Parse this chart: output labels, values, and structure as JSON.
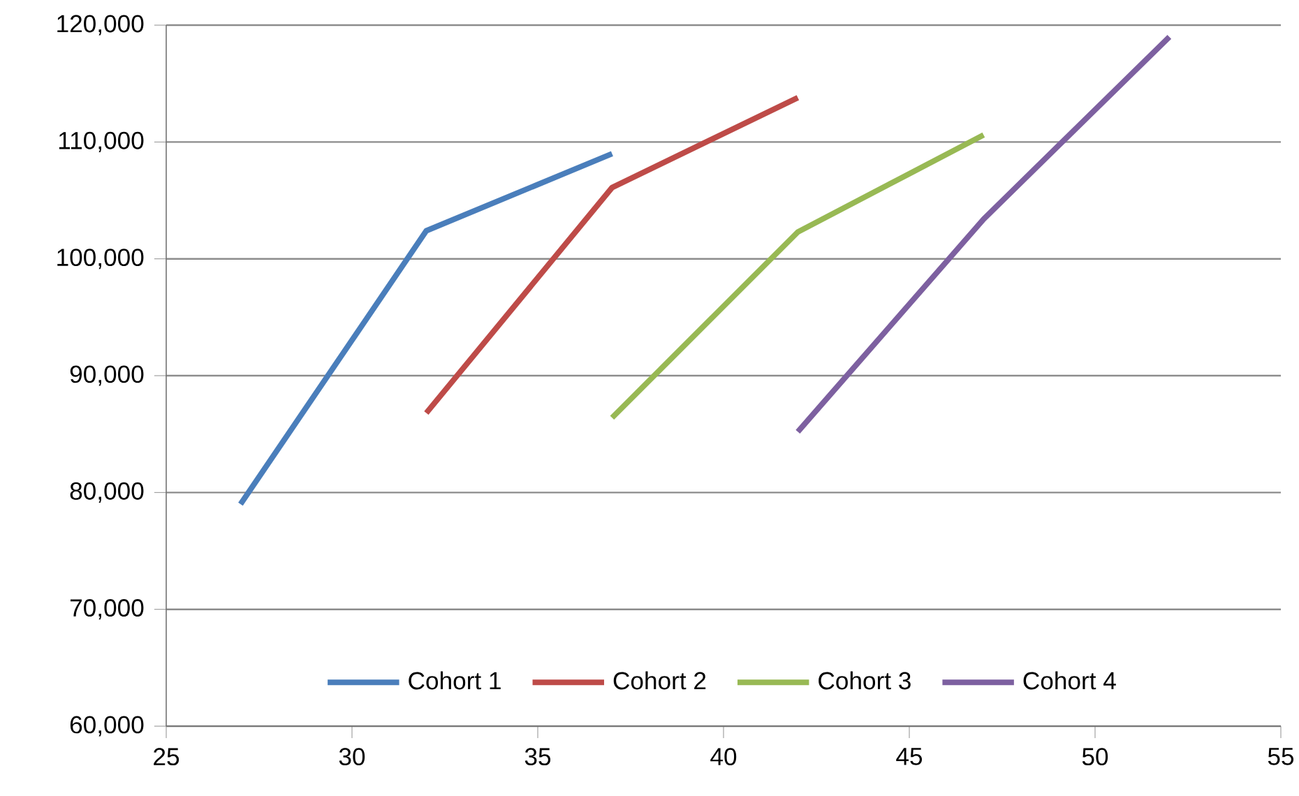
{
  "chart_data": {
    "type": "line",
    "xlim": [
      25,
      55
    ],
    "xticks": [
      25,
      30,
      35,
      40,
      45,
      50,
      55
    ],
    "ylim": [
      60000,
      120000
    ],
    "yticks": [
      {
        "value": 60000,
        "label": "60,000"
      },
      {
        "value": 70000,
        "label": "70,000"
      },
      {
        "value": 80000,
        "label": "80,000"
      },
      {
        "value": 90000,
        "label": "90,000"
      },
      {
        "value": 100000,
        "label": "100,000"
      },
      {
        "value": 110000,
        "label": "110,000"
      },
      {
        "value": 120000,
        "label": "120,000"
      }
    ],
    "grid": "y",
    "legend": "bottom",
    "marker": "none",
    "line_style": "solid",
    "series": [
      {
        "name": "Cohort 1",
        "color": "#4a7ebb",
        "x": [
          27,
          32,
          37
        ],
        "values": [
          79000,
          102400,
          109000
        ]
      },
      {
        "name": "Cohort 2",
        "color": "#be4b48",
        "x": [
          32,
          37,
          42
        ],
        "values": [
          86800,
          106100,
          113800
        ]
      },
      {
        "name": "Cohort 3",
        "color": "#98b954",
        "x": [
          37,
          42,
          47
        ],
        "values": [
          86400,
          102300,
          110600
        ]
      },
      {
        "name": "Cohort 4",
        "color": "#7d60a0",
        "x": [
          42,
          47,
          52
        ],
        "values": [
          85200,
          103400,
          119000
        ]
      }
    ]
  }
}
